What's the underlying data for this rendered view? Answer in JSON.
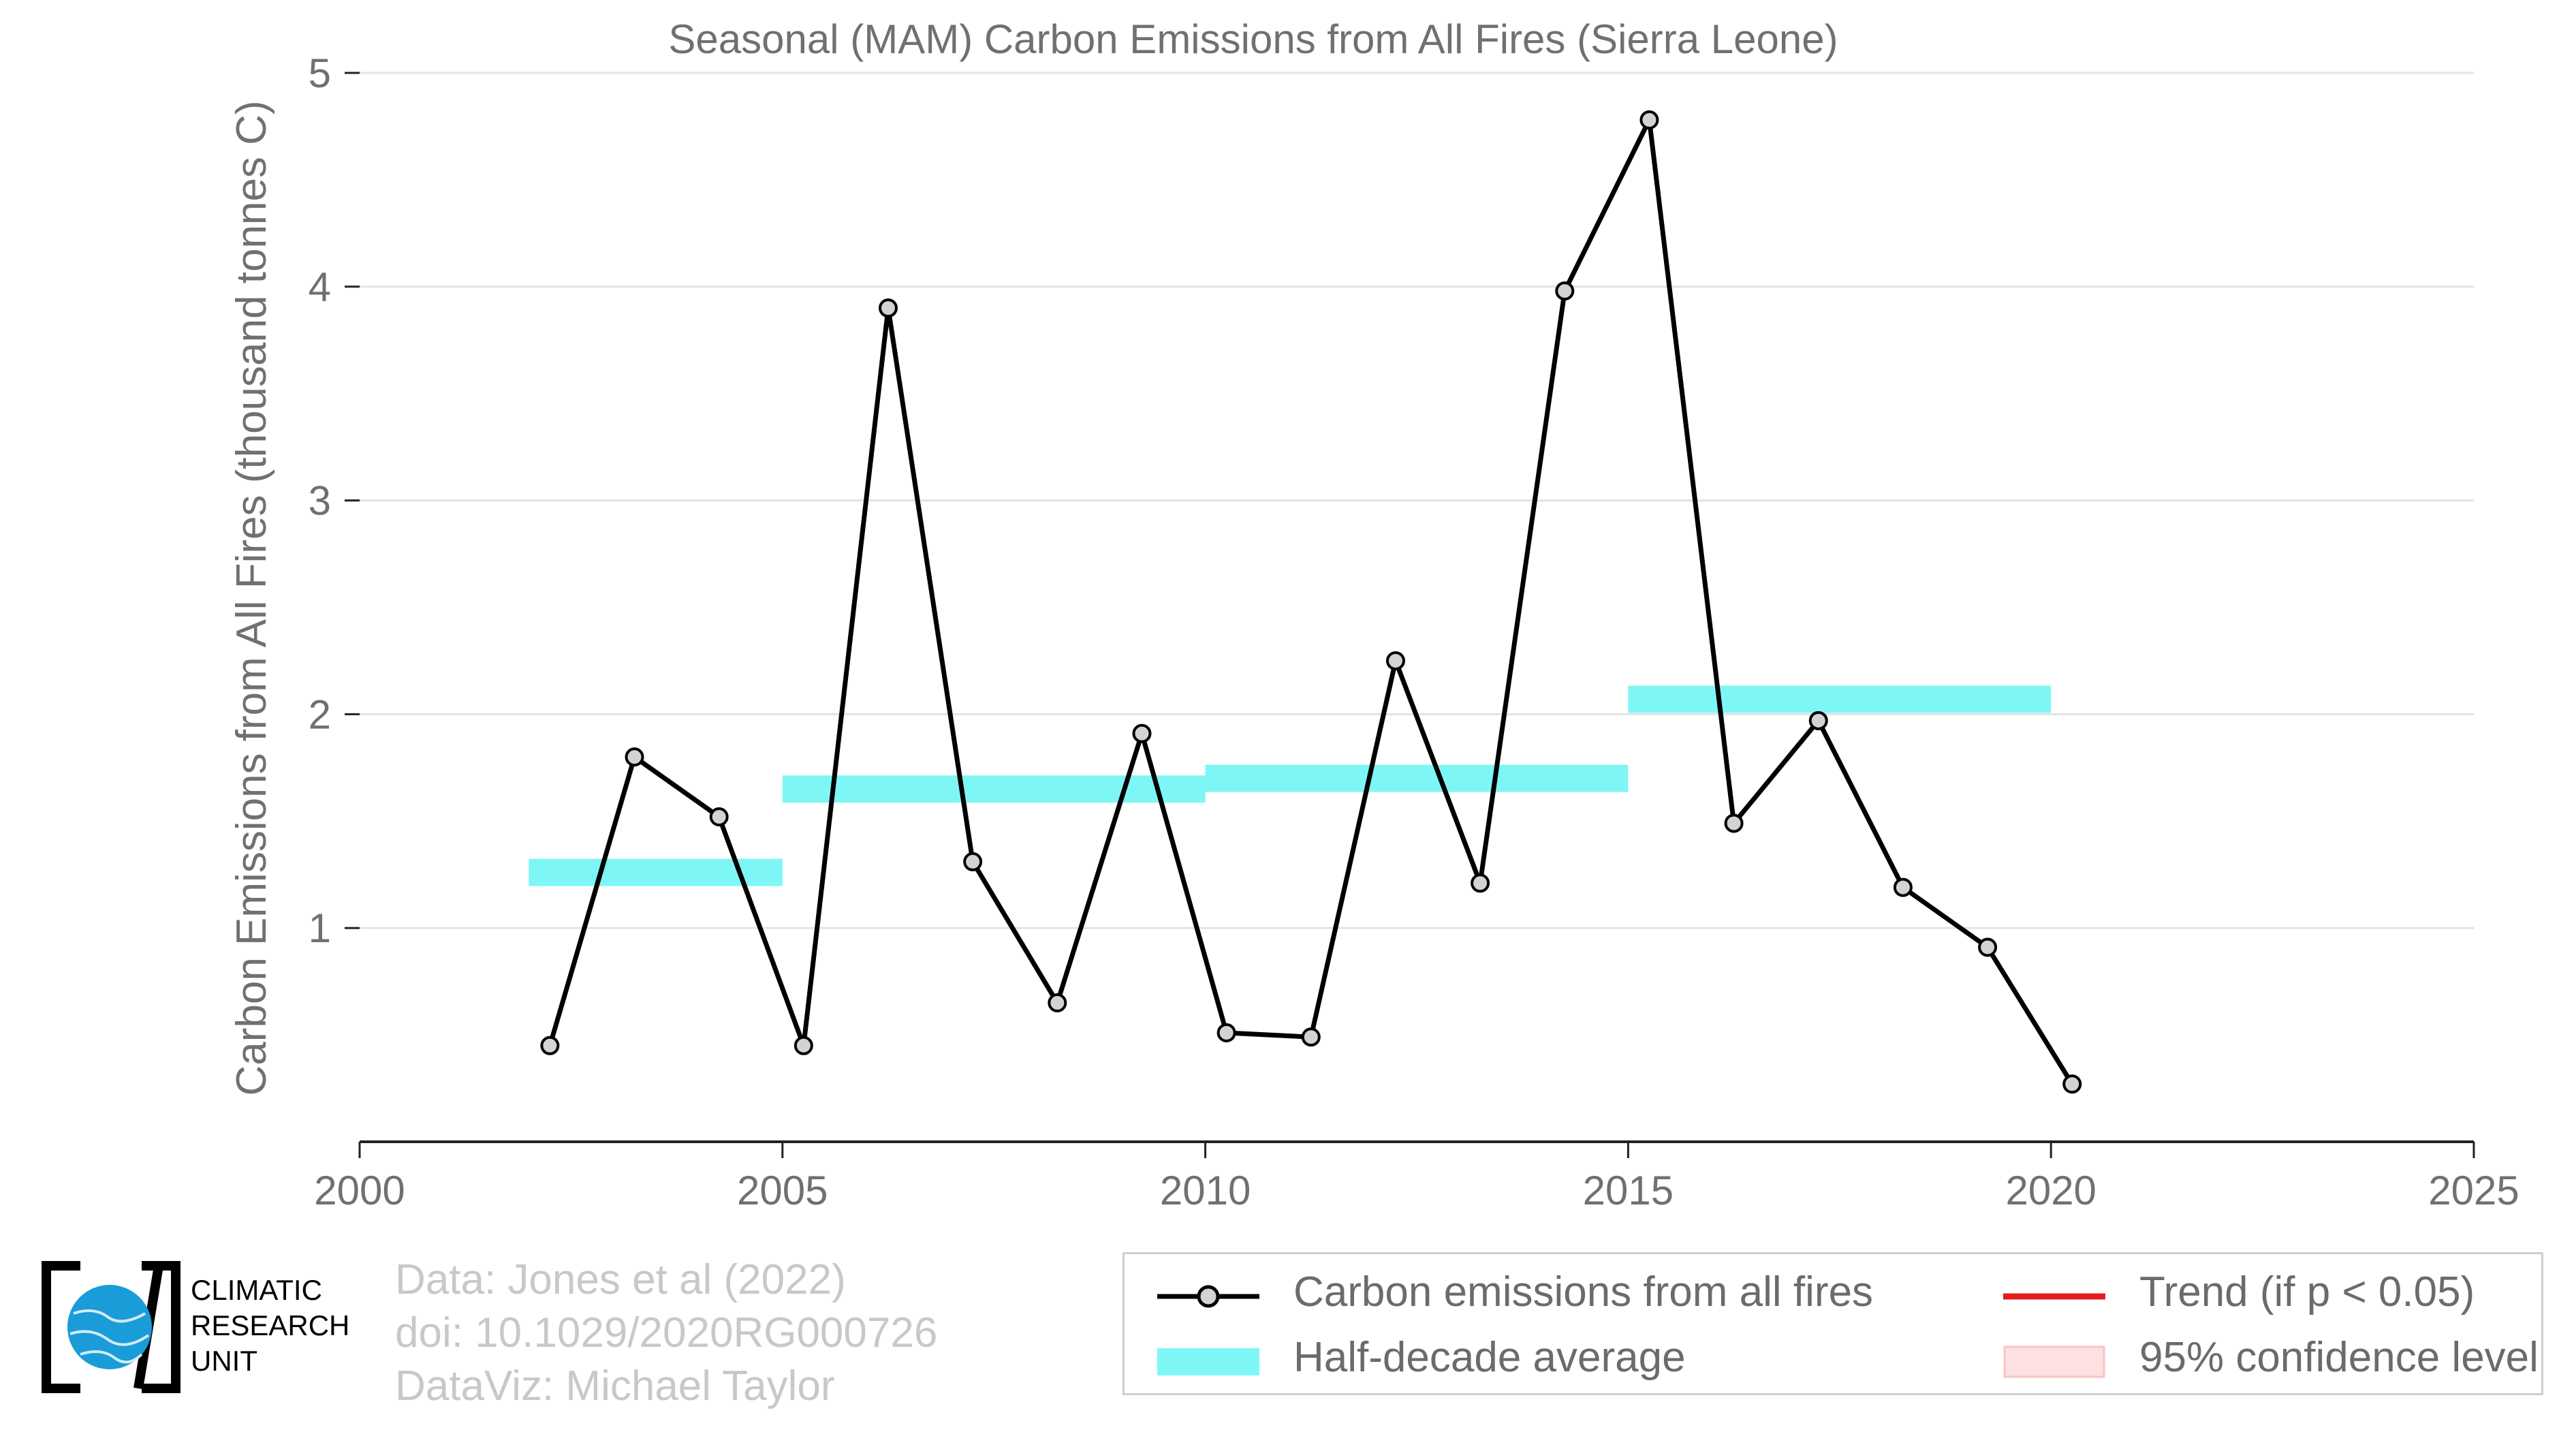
{
  "chart_data": {
    "type": "line",
    "title": "Seasonal (MAM) Carbon Emissions from All Fires (Sierra Leone)",
    "xlabel": "",
    "ylabel": "Carbon Emissions from All Fires (thousand tonnes C)",
    "xlim": [
      2000,
      2025
    ],
    "ylim": [
      0,
      5
    ],
    "xticks": [
      2000,
      2005,
      2010,
      2015,
      2020,
      2025
    ],
    "yticks": [
      1,
      2,
      3,
      4,
      5
    ],
    "grid": "horizontal",
    "legend_position": "bottom",
    "series": [
      {
        "name": "Carbon emissions from all fires",
        "color": "#000000",
        "marker_color": "#d3d3d3",
        "x": [
          2002.25,
          2003.25,
          2004.25,
          2005.25,
          2006.25,
          2007.25,
          2008.25,
          2009.25,
          2010.25,
          2011.25,
          2012.25,
          2013.25,
          2014.25,
          2015.25,
          2016.25,
          2017.25,
          2018.25,
          2019.25,
          2020.25
        ],
        "y": [
          0.45,
          1.8,
          1.52,
          0.45,
          3.9,
          1.31,
          0.65,
          1.91,
          0.51,
          0.49,
          2.25,
          1.21,
          3.98,
          4.78,
          1.49,
          1.97,
          1.19,
          0.91,
          0.27
        ]
      }
    ],
    "half_decade_average": {
      "name": "Half-decade average",
      "color": "#7ff6f6",
      "segments": [
        {
          "x_start": 2002,
          "x_end": 2005,
          "y": 1.26
        },
        {
          "x_start": 2005,
          "x_end": 2010,
          "y": 1.65
        },
        {
          "x_start": 2010,
          "x_end": 2015,
          "y": 1.7
        },
        {
          "x_start": 2015,
          "x_end": 2020,
          "y": 2.07
        }
      ]
    }
  },
  "legend": {
    "items": [
      {
        "label": "Carbon emissions from all fires",
        "color": "#000000",
        "icon": "line-with-marker"
      },
      {
        "label": "Half-decade average",
        "color": "#7ff6f6",
        "icon": "filled-bar"
      },
      {
        "label": "Trend (if p < 0.05)",
        "color": "#e41a1c",
        "icon": "line"
      },
      {
        "label": "95% confidence level",
        "color": "#fde0e0",
        "icon": "shaded-box"
      }
    ]
  },
  "credits": {
    "line1": "Data: Jones et al (2022)",
    "line2": "doi: 10.1029/2020RG000726",
    "line3": "DataViz: Michael Taylor"
  },
  "logo": {
    "line1": "CLIMATIC",
    "line2": "RESEARCH",
    "line3": "UNIT",
    "icon": "cru-globe-logo"
  }
}
